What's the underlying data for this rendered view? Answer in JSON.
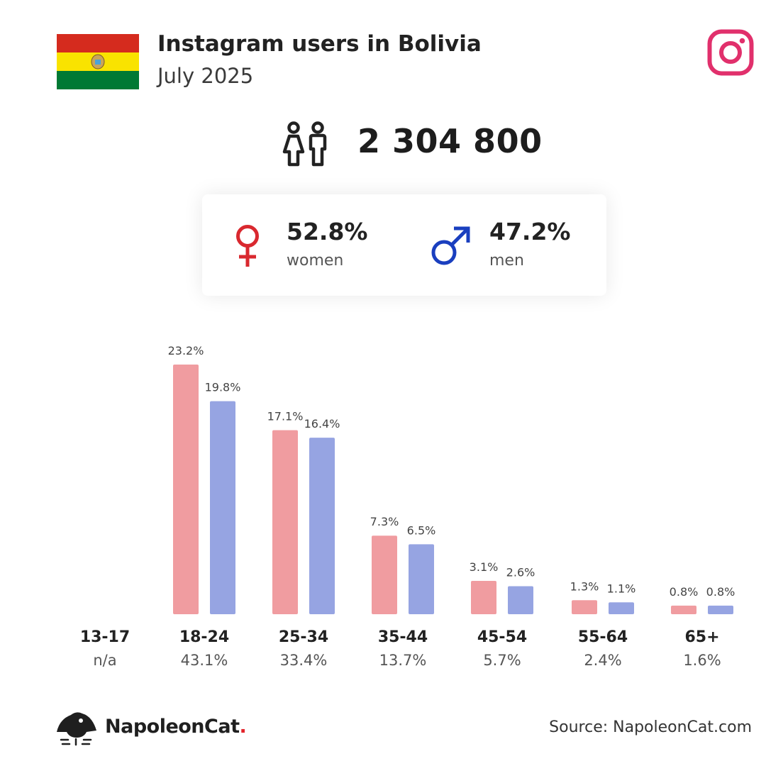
{
  "header": {
    "title": "Instagram users in Bolivia",
    "subtitle": "July 2025"
  },
  "icons": {
    "flag": "bolivia-flag",
    "platform": "instagram-icon",
    "users": "users-icon",
    "female": "female-symbol-icon",
    "male": "male-symbol-icon",
    "logo": "napoleoncat-logo"
  },
  "total_users": "2 304 800",
  "gender": {
    "women": {
      "pct": "52.8%",
      "label": "women",
      "color": "#d9282f"
    },
    "men": {
      "pct": "47.2%",
      "label": "men",
      "color": "#1a3fbf"
    }
  },
  "chart_data": {
    "type": "bar",
    "categories": [
      "13-17",
      "18-24",
      "25-34",
      "35-44",
      "45-54",
      "55-64",
      "65+"
    ],
    "group_totals": [
      "n/a",
      "43.1%",
      "33.4%",
      "13.7%",
      "5.7%",
      "2.4%",
      "1.6%"
    ],
    "series": [
      {
        "color": "#f09ca0",
        "values": [
          null,
          23.2,
          17.1,
          7.3,
          3.1,
          1.3,
          0.8
        ],
        "labels": [
          "",
          "23.2%",
          "17.1%",
          "7.3%",
          "3.1%",
          "1.3%",
          "0.8%"
        ]
      },
      {
        "color": "#96a4e2",
        "values": [
          null,
          19.8,
          16.4,
          6.5,
          2.6,
          1.1,
          0.8
        ],
        "labels": [
          "",
          "19.8%",
          "16.4%",
          "6.5%",
          "2.6%",
          "1.1%",
          "0.8%"
        ]
      }
    ],
    "ylim": [
      0,
      23.2
    ],
    "grid": false
  },
  "footer": {
    "brand": "NapoleonCat",
    "brand_dot": ".",
    "source": "Source: NapoleonCat.com"
  }
}
